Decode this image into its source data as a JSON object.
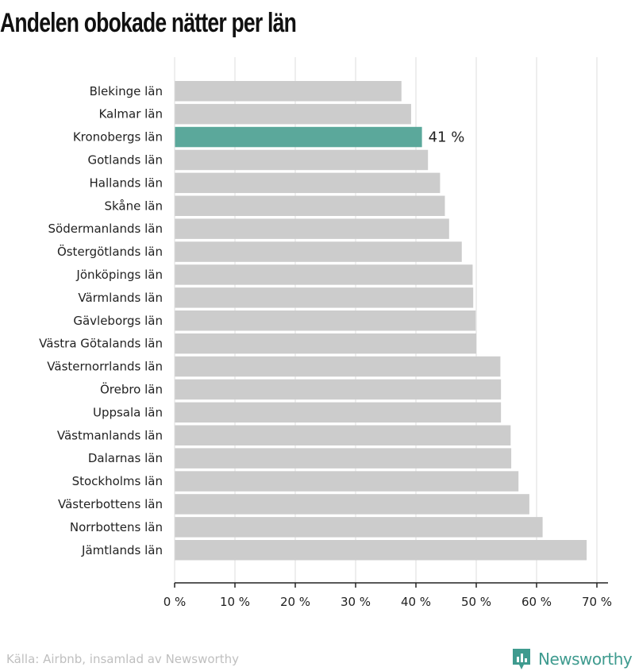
{
  "title": "Andelen obokade nätter per län",
  "footer": {
    "source": "Källa: Airbnb, insamlad av Newsworthy",
    "brand": "Newsworthy"
  },
  "colors": {
    "bar": "#cccccc",
    "highlight": "#5ba89b",
    "grid": "#dddddd",
    "axis": "#222222",
    "brand": "#3f9b8f"
  },
  "chart_data": {
    "type": "bar",
    "orientation": "horizontal",
    "categories": [
      "Blekinge län",
      "Kalmar län",
      "Kronobergs län",
      "Gotlands län",
      "Hallands län",
      "Skåne län",
      "Södermanlands län",
      "Östergötlands län",
      "Jönköpings län",
      "Värmlands län",
      "Gävleborgs län",
      "Västra Götalands län",
      "Västernorrlands län",
      "Örebro län",
      "Uppsala län",
      "Västmanlands län",
      "Dalarnas län",
      "Stockholms län",
      "Västerbottens län",
      "Norrbottens län",
      "Jämtlands län"
    ],
    "values": [
      37.6,
      39.2,
      41,
      42,
      44,
      44.8,
      45.5,
      47.6,
      49.4,
      49.5,
      49.9,
      50.0,
      54.0,
      54.1,
      54.1,
      55.7,
      55.8,
      57.0,
      58.8,
      61.0,
      68.3
    ],
    "highlight_index": 2,
    "data_labels": [
      {
        "index": 2,
        "text": "41 %"
      }
    ],
    "xlim": [
      0,
      70
    ],
    "xticks": [
      {
        "value": 0,
        "label": "0 %"
      },
      {
        "value": 10,
        "label": "10 %"
      },
      {
        "value": 20,
        "label": "20 %"
      },
      {
        "value": 30,
        "label": "30 %"
      },
      {
        "value": 40,
        "label": "40 %"
      },
      {
        "value": 50,
        "label": "50 %"
      },
      {
        "value": 60,
        "label": "60 %"
      },
      {
        "value": 70,
        "label": "70 %"
      }
    ],
    "grid": true,
    "xlabel": "",
    "ylabel": ""
  }
}
